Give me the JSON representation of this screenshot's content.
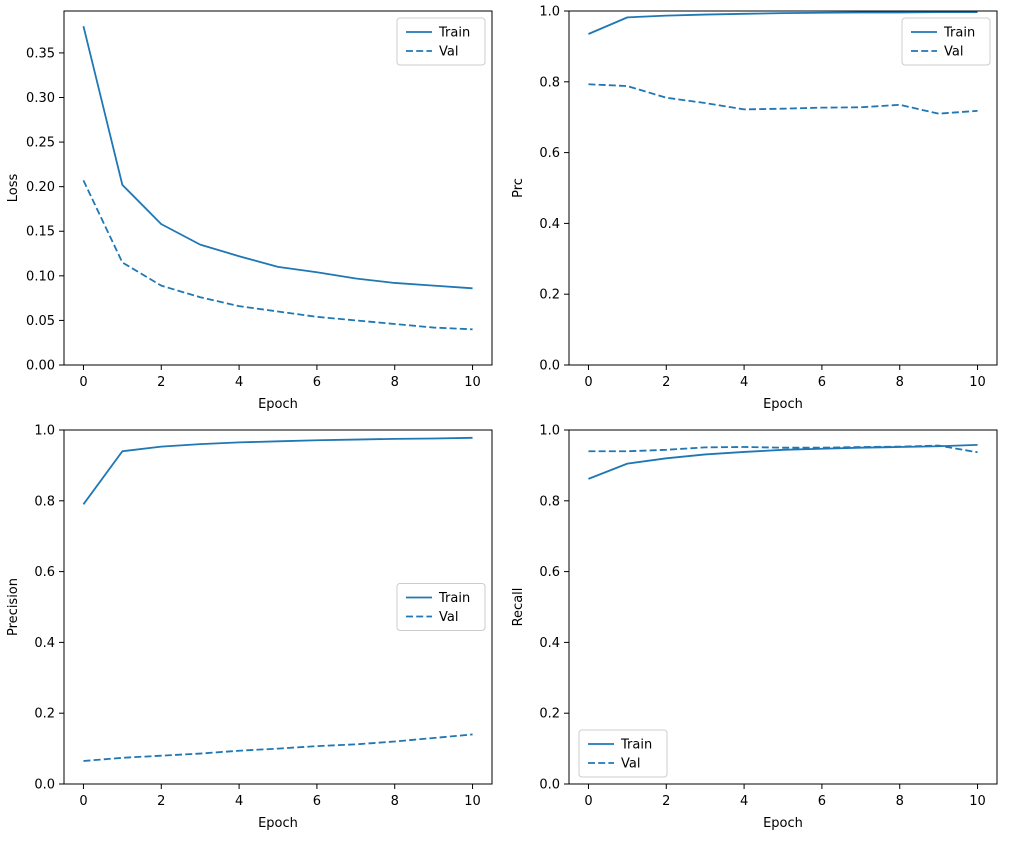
{
  "figure": {
    "background": "#ffffff",
    "accent_color": "#1f77b4"
  },
  "chart_data": [
    {
      "id": "loss",
      "type": "line",
      "title": "",
      "xlabel": "Epoch",
      "ylabel": "Loss",
      "x": [
        0,
        1,
        2,
        3,
        4,
        5,
        6,
        7,
        8,
        9,
        10
      ],
      "xlim": [
        -0.5,
        10.5
      ],
      "ylim": [
        0,
        0.397
      ],
      "xticks": [
        0,
        2,
        4,
        6,
        8,
        10
      ],
      "yticks": [
        0.0,
        0.05,
        0.1,
        0.15,
        0.2,
        0.25,
        0.3,
        0.35
      ],
      "ytick_decimals": 2,
      "grid": false,
      "legend_position": "upper-right",
      "series": [
        {
          "name": "Train",
          "style": "solid",
          "color": "#1f77b4",
          "values": [
            0.38,
            0.202,
            0.158,
            0.135,
            0.122,
            0.11,
            0.104,
            0.097,
            0.092,
            0.089,
            0.086
          ]
        },
        {
          "name": "Val",
          "style": "dashed",
          "color": "#1f77b4",
          "values": [
            0.207,
            0.115,
            0.089,
            0.076,
            0.066,
            0.06,
            0.054,
            0.05,
            0.046,
            0.042,
            0.04
          ]
        }
      ]
    },
    {
      "id": "prc",
      "type": "line",
      "title": "",
      "xlabel": "Epoch",
      "ylabel": "Prc",
      "x": [
        0,
        1,
        2,
        3,
        4,
        5,
        6,
        7,
        8,
        9,
        10
      ],
      "xlim": [
        -0.5,
        10.5
      ],
      "ylim": [
        0,
        1.0
      ],
      "xticks": [
        0,
        2,
        4,
        6,
        8,
        10
      ],
      "yticks": [
        0.0,
        0.2,
        0.4,
        0.6,
        0.8,
        1.0
      ],
      "ytick_decimals": 1,
      "grid": false,
      "legend_position": "upper-right",
      "series": [
        {
          "name": "Train",
          "style": "solid",
          "color": "#1f77b4",
          "values": [
            0.935,
            0.982,
            0.987,
            0.99,
            0.992,
            0.994,
            0.995,
            0.996,
            0.996,
            0.997,
            0.997
          ]
        },
        {
          "name": "Val",
          "style": "dashed",
          "color": "#1f77b4",
          "values": [
            0.793,
            0.788,
            0.755,
            0.74,
            0.722,
            0.724,
            0.727,
            0.728,
            0.735,
            0.71,
            0.718
          ]
        }
      ]
    },
    {
      "id": "precision",
      "type": "line",
      "title": "",
      "xlabel": "Epoch",
      "ylabel": "Precision",
      "x": [
        0,
        1,
        2,
        3,
        4,
        5,
        6,
        7,
        8,
        9,
        10
      ],
      "xlim": [
        -0.5,
        10.5
      ],
      "ylim": [
        0,
        1.0
      ],
      "xticks": [
        0,
        2,
        4,
        6,
        8,
        10
      ],
      "yticks": [
        0.0,
        0.2,
        0.4,
        0.6,
        0.8,
        1.0
      ],
      "ytick_decimals": 1,
      "grid": false,
      "legend_position": "center-right",
      "series": [
        {
          "name": "Train",
          "style": "solid",
          "color": "#1f77b4",
          "values": [
            0.79,
            0.94,
            0.953,
            0.96,
            0.965,
            0.968,
            0.971,
            0.973,
            0.975,
            0.976,
            0.978
          ]
        },
        {
          "name": "Val",
          "style": "dashed",
          "color": "#1f77b4",
          "values": [
            0.065,
            0.074,
            0.08,
            0.086,
            0.094,
            0.1,
            0.107,
            0.112,
            0.12,
            0.13,
            0.14
          ]
        }
      ]
    },
    {
      "id": "recall",
      "type": "line",
      "title": "",
      "xlabel": "Epoch",
      "ylabel": "Recall",
      "x": [
        0,
        1,
        2,
        3,
        4,
        5,
        6,
        7,
        8,
        9,
        10
      ],
      "xlim": [
        -0.5,
        10.5
      ],
      "ylim": [
        0,
        1.0
      ],
      "xticks": [
        0,
        2,
        4,
        6,
        8,
        10
      ],
      "yticks": [
        0.0,
        0.2,
        0.4,
        0.6,
        0.8,
        1.0
      ],
      "ytick_decimals": 1,
      "grid": false,
      "legend_position": "lower-left",
      "series": [
        {
          "name": "Train",
          "style": "solid",
          "color": "#1f77b4",
          "values": [
            0.862,
            0.905,
            0.92,
            0.931,
            0.938,
            0.944,
            0.947,
            0.95,
            0.952,
            0.954,
            0.958
          ]
        },
        {
          "name": "Val",
          "style": "dashed",
          "color": "#1f77b4",
          "values": [
            0.94,
            0.94,
            0.944,
            0.951,
            0.952,
            0.95,
            0.95,
            0.952,
            0.953,
            0.956,
            0.937
          ]
        }
      ]
    }
  ]
}
